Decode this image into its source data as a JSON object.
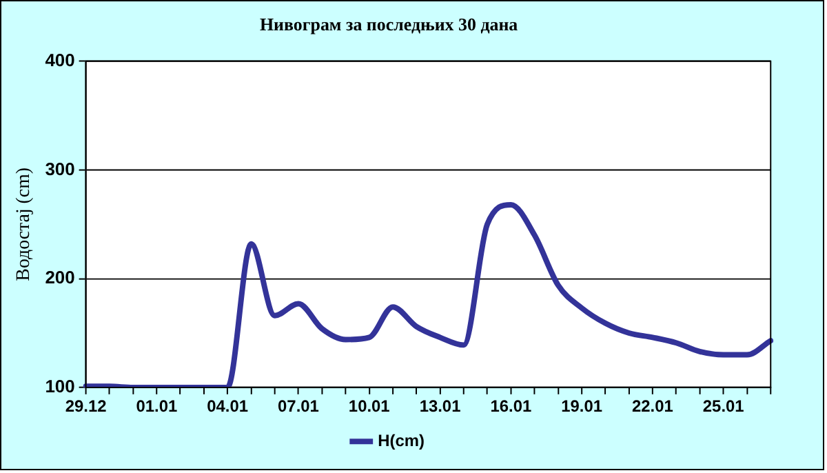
{
  "chart_data": {
    "type": "line",
    "title": "Нивограм за последњих 30 дана",
    "ylabel": "Водостај (cm)",
    "categories": [
      "29.12",
      null,
      null,
      "01.01",
      null,
      null,
      "04.01",
      null,
      null,
      "07.01",
      null,
      null,
      "10.01",
      null,
      null,
      "13.01",
      null,
      null,
      "16.01",
      null,
      null,
      "19.01",
      null,
      null,
      "22.01",
      null,
      null,
      "25.01",
      null,
      null
    ],
    "series": [
      {
        "name": "H(cm)",
        "color": "#333399",
        "values": [
          101,
          101,
          100,
          100,
          100,
          100,
          100,
          232,
          166,
          177,
          154,
          144,
          146,
          174,
          156,
          146,
          139,
          250,
          268,
          240,
          194,
          173,
          159,
          150,
          146,
          141,
          133,
          130,
          130,
          143
        ]
      }
    ],
    "ylim": [
      100,
      400
    ],
    "yticks": [
      100,
      200,
      300,
      400
    ],
    "grid": "y",
    "legend": "bottom",
    "marker": "none",
    "line_style": "solid"
  }
}
